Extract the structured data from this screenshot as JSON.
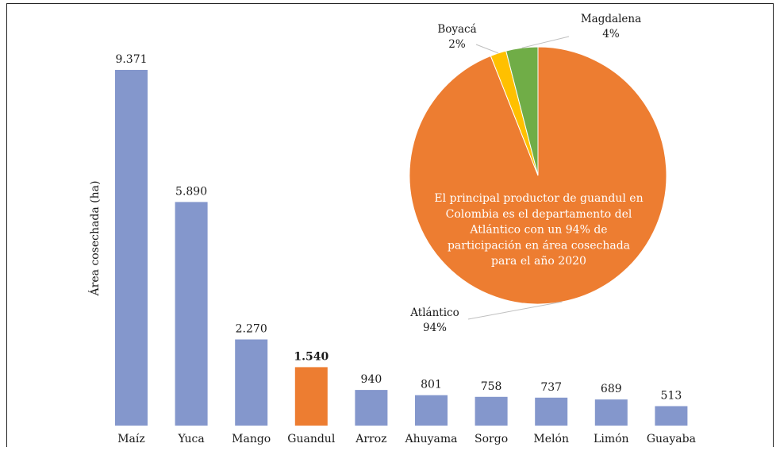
{
  "chart_data": [
    {
      "type": "bar",
      "title": "",
      "xlabel": "",
      "ylabel": "Área cosechada (ha)",
      "ylim": [
        0,
        10000
      ],
      "grid": false,
      "categories": [
        "Maíz",
        "Yuca",
        "Mango",
        "Guandul",
        "Arroz",
        "Ahuyama",
        "Sorgo",
        "Melón",
        "Limón",
        "Guayaba"
      ],
      "values": [
        9371,
        5890,
        2270,
        1540,
        940,
        801,
        758,
        737,
        689,
        513
      ],
      "value_labels": [
        "9.371",
        "5.890",
        "2.270",
        "1.540",
        "940",
        "801",
        "758",
        "737",
        "689",
        "513"
      ],
      "colors": [
        "#8497cc",
        "#8497cc",
        "#8497cc",
        "#ed7d31",
        "#8497cc",
        "#8497cc",
        "#8497cc",
        "#8497cc",
        "#8497cc",
        "#8497cc"
      ],
      "highlight_category": "Guandul"
    },
    {
      "type": "pie",
      "title": "",
      "slices": [
        {
          "name": "Atlántico",
          "value": 94,
          "label": "94%",
          "color": "#ed7d31"
        },
        {
          "name": "Boyacá",
          "value": 2,
          "label": "2%",
          "color": "#ffc000"
        },
        {
          "name": "Magdalena",
          "value": 4,
          "label": "4%",
          "color": "#70ad47"
        }
      ],
      "annotation": [
        "El principal productor de guandul en",
        "Colombia es el departamento del",
        "Atlántico con un 94% de",
        "participación en área cosechada",
        "para el año 2020"
      ]
    }
  ]
}
